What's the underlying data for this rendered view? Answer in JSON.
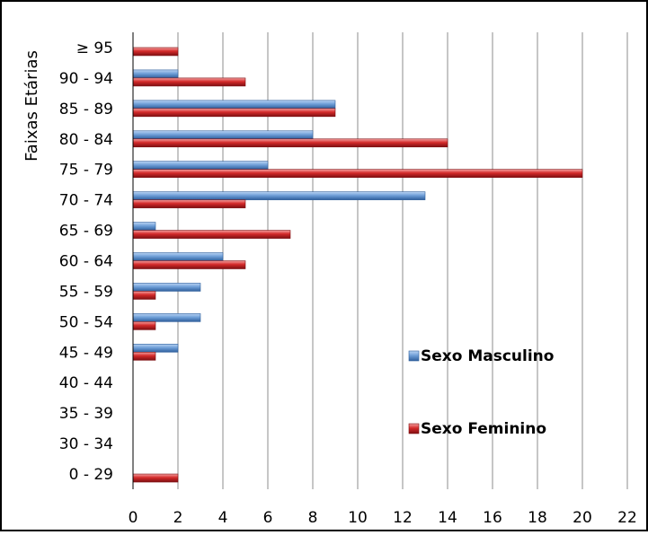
{
  "chart_data": {
    "type": "bar",
    "orientation": "horizontal",
    "title": "",
    "xlabel": "",
    "ylabel": "Faixas Etárias",
    "xlim": [
      0,
      22
    ],
    "xticks": [
      0,
      2,
      4,
      6,
      8,
      10,
      12,
      14,
      16,
      18,
      20,
      22
    ],
    "grid": "vertical",
    "legend_position": "right",
    "categories": [
      "0 - 29",
      "30 - 34",
      "35 - 39",
      "40 - 44",
      "45 - 49",
      "50 - 54",
      "55 - 59",
      "60 - 64",
      "65 - 69",
      "70 - 74",
      "75 - 79",
      "80 - 84",
      "85 - 89",
      "90 - 94",
      "≥ 95"
    ],
    "series": [
      {
        "name": "Sexo Masculino",
        "color": "#4F81BD",
        "values": [
          0,
          0,
          0,
          0,
          2,
          3,
          3,
          4,
          1,
          13,
          6,
          8,
          9,
          2,
          0
        ]
      },
      {
        "name": "Sexo Feminino",
        "color": "#C0232B",
        "values": [
          2,
          0,
          0,
          0,
          1,
          1,
          1,
          5,
          7,
          5,
          20,
          14,
          9,
          5,
          2
        ]
      }
    ]
  }
}
